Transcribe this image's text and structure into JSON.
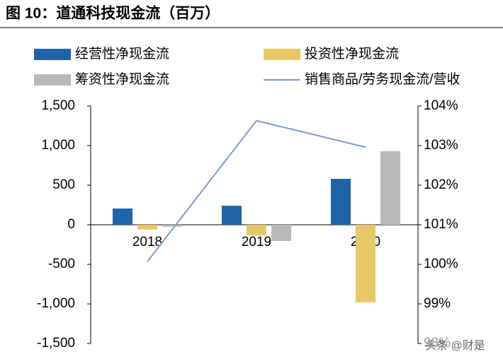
{
  "chart_data": {
    "type": "bar",
    "title": "图 10：道通科技现金流（百万）",
    "categories": [
      "2018",
      "2019",
      "2020"
    ],
    "series": [
      {
        "name": "经营性净现金流",
        "color": "#1f64a6",
        "values": [
          205,
          240,
          580
        ]
      },
      {
        "name": "投资性净现金流",
        "color": "#e8c766",
        "values": [
          -60,
          -135,
          -980
        ]
      },
      {
        "name": "筹资性净现金流",
        "color": "#b9b9b9",
        "values": [
          -25,
          -205,
          930
        ]
      },
      {
        "name": "销售商品/劳务现金流/营收",
        "color": "#7b9bd0",
        "type": "line",
        "axis": "y2",
        "values": [
          100.07,
          103.63,
          102.96
        ]
      }
    ],
    "ylim": [
      -1500,
      1500
    ],
    "yticks": [
      {
        "value": -1500,
        "label": "-1,500"
      },
      {
        "value": -1000,
        "label": "-1,000"
      },
      -500,
      0,
      500,
      {
        "value": 1000,
        "label": "1,000"
      },
      {
        "value": 1500,
        "label": "1,500"
      }
    ],
    "y2lim": [
      98,
      104
    ],
    "y2ticks": [
      {
        "value": 98,
        "label": "98%"
      },
      {
        "value": 99,
        "label": "99%"
      },
      {
        "value": 100,
        "label": "100%"
      },
      {
        "value": 101,
        "label": "101%"
      },
      {
        "value": 102,
        "label": "102%"
      },
      {
        "value": 103,
        "label": "103%"
      },
      {
        "value": 104,
        "label": "104%"
      }
    ],
    "watermark": "头条 @财是"
  }
}
